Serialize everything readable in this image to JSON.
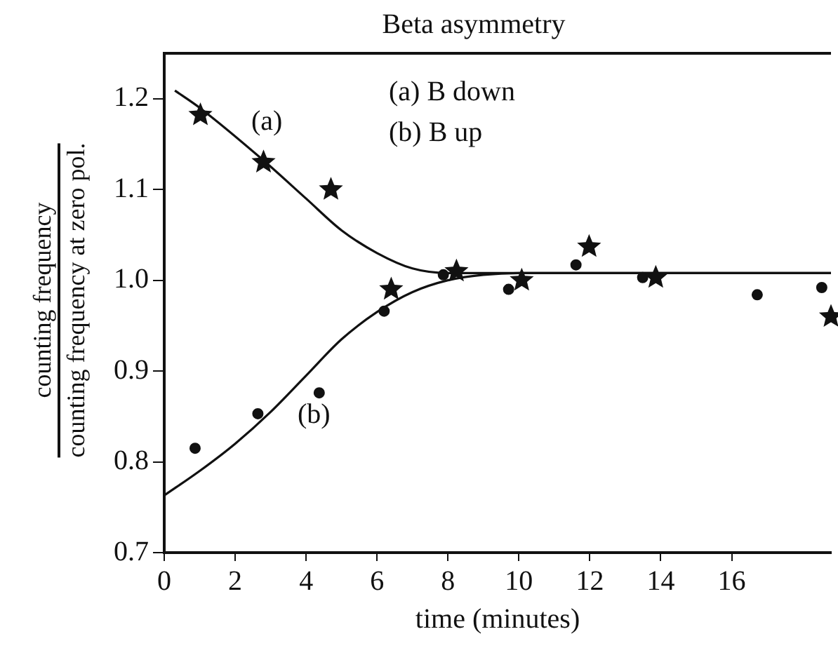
{
  "chart_data": {
    "type": "scatter",
    "title": "Beta asymmetry",
    "xlabel": "time (minutes)",
    "ylabel": "counting frequency\ncounting frequency at zero pol.",
    "xlim": [
      0,
      18.8
    ],
    "xticks": [
      0,
      2,
      4,
      6,
      8,
      10,
      12,
      14,
      16
    ],
    "ylim": [
      0.7,
      1.25
    ],
    "yticks": [
      0.7,
      0.8,
      0.9,
      {
        "value": 1,
        "label": "1.0"
      },
      1.1,
      1.2
    ],
    "grid": false,
    "legend": false,
    "annotations": [
      "(a) B down",
      "(b) B up",
      "(a)",
      "(b)"
    ],
    "series": [
      {
        "type": "scatter",
        "marker": "star",
        "color": "#111111",
        "x": [
          1.02,
          2.8,
          4.7,
          6.4,
          8.24,
          10.08,
          11.98,
          13.86,
          18.8
        ],
        "values": [
          1.182,
          1.13,
          1.1,
          0.99,
          1.01,
          1.0,
          1.037,
          1.003,
          0.96
        ]
      },
      {
        "type": "scatter",
        "marker": "circle",
        "color": "#111111",
        "x": [
          0.87,
          2.64,
          4.37,
          6.2,
          7.87,
          9.71,
          11.61,
          13.49,
          16.72,
          18.54
        ],
        "values": [
          0.815,
          0.853,
          0.876,
          0.966,
          1.006,
          0.99,
          1.017,
          1.003,
          0.984,
          0.992
        ]
      },
      {
        "type": "line",
        "marker": "none",
        "line_style": "solid",
        "color": "#111111",
        "x": [
          0.3,
          1.0,
          2.8,
          4,
          5,
          6,
          7,
          8,
          10,
          18.8
        ],
        "values": [
          1.209,
          1.19,
          1.132,
          1.09,
          1.055,
          1.03,
          1.013,
          1.008,
          1.008,
          1.008
        ]
      },
      {
        "type": "line",
        "marker": "none",
        "line_style": "solid",
        "color": "#111111",
        "x": [
          0,
          1,
          2,
          3,
          4,
          5,
          6,
          7,
          8,
          9,
          10,
          18.8
        ],
        "values": [
          0.763,
          0.79,
          0.82,
          0.855,
          0.895,
          0.935,
          0.965,
          0.987,
          1.0,
          1.006,
          1.008,
          1.008
        ]
      }
    ]
  }
}
